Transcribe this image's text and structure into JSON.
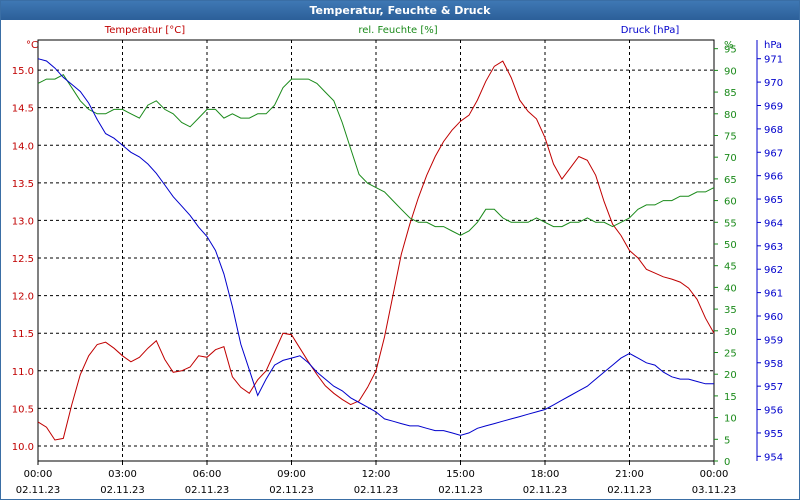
{
  "window": {
    "title": "Temperatur, Feuchte & Druck"
  },
  "chart_data": {
    "type": "line",
    "title": "Temperatur, Feuchte & Druck",
    "grid": true,
    "x_tick_labels": [
      {
        "time": "00:00",
        "date": "02.11.23"
      },
      {
        "time": "03:00",
        "date": "02.11.23"
      },
      {
        "time": "06:00",
        "date": "02.11.23"
      },
      {
        "time": "09:00",
        "date": "02.11.23"
      },
      {
        "time": "12:00",
        "date": "02.11.23"
      },
      {
        "time": "15:00",
        "date": "02.11.23"
      },
      {
        "time": "18:00",
        "date": "02.11.23"
      },
      {
        "time": "21:00",
        "date": "02.11.23"
      },
      {
        "time": "00:00",
        "date": "03.11.23"
      }
    ],
    "xlim": [
      0,
      24
    ],
    "axes": {
      "temperature": {
        "header": "Temperatur [°C]",
        "unit_label": "°C",
        "ylim": [
          9.8,
          15.4
        ],
        "ticks": [
          "10.0",
          "10.5",
          "11.0",
          "11.5",
          "12.0",
          "12.5",
          "13.0",
          "13.5",
          "14.0",
          "14.5",
          "15.0"
        ],
        "tick_values": [
          10.0,
          10.5,
          11.0,
          11.5,
          12.0,
          12.5,
          13.0,
          13.5,
          14.0,
          14.5,
          15.0
        ],
        "color": "#c00000"
      },
      "humidity": {
        "header": "rel. Feuchte [%]",
        "unit_label": "%",
        "ylim": [
          0,
          97
        ],
        "ticks": [
          "0",
          "5",
          "10",
          "15",
          "20",
          "25",
          "30",
          "35",
          "40",
          "45",
          "50",
          "55",
          "60",
          "65",
          "70",
          "75",
          "80",
          "85",
          "90",
          "95"
        ],
        "tick_values": [
          0,
          5,
          10,
          15,
          20,
          25,
          30,
          35,
          40,
          45,
          50,
          55,
          60,
          65,
          70,
          75,
          80,
          85,
          90,
          95
        ],
        "color": "#1a8a1a"
      },
      "pressure": {
        "header": "Druck [hPa]",
        "unit_label": "hPa",
        "ylim": [
          953.8,
          971.8
        ],
        "ticks": [
          "954",
          "955",
          "956",
          "957",
          "958",
          "959",
          "960",
          "961",
          "962",
          "963",
          "964",
          "965",
          "966",
          "967",
          "968",
          "969",
          "970",
          "971"
        ],
        "tick_values": [
          954,
          955,
          956,
          957,
          958,
          959,
          960,
          961,
          962,
          963,
          964,
          965,
          966,
          967,
          968,
          969,
          970,
          971
        ],
        "color": "#0000cc"
      }
    },
    "series": [
      {
        "name": "Temperatur [°C]",
        "axis": "temperature",
        "color": "#c00000",
        "x": [
          0,
          0.3,
          0.6,
          0.9,
          1.2,
          1.5,
          1.8,
          2.1,
          2.4,
          2.7,
          3.0,
          3.3,
          3.6,
          3.9,
          4.2,
          4.5,
          4.8,
          5.1,
          5.4,
          5.7,
          6.0,
          6.3,
          6.6,
          6.9,
          7.2,
          7.5,
          7.8,
          8.1,
          8.4,
          8.7,
          9.0,
          9.3,
          9.6,
          9.9,
          10.2,
          10.5,
          10.8,
          11.1,
          11.4,
          11.7,
          12.0,
          12.3,
          12.6,
          12.9,
          13.2,
          13.5,
          13.8,
          14.1,
          14.4,
          14.7,
          15.0,
          15.3,
          15.6,
          15.9,
          16.2,
          16.5,
          16.8,
          17.1,
          17.4,
          17.7,
          18.0,
          18.3,
          18.6,
          18.9,
          19.2,
          19.5,
          19.8,
          20.1,
          20.4,
          20.7,
          21.0,
          21.3,
          21.6,
          21.9,
          22.2,
          22.5,
          22.8,
          23.1,
          23.4,
          23.7,
          24.0
        ],
        "values": [
          10.32,
          10.25,
          10.08,
          10.1,
          10.55,
          10.95,
          11.2,
          11.35,
          11.38,
          11.3,
          11.2,
          11.12,
          11.18,
          11.3,
          11.4,
          11.15,
          10.98,
          11.0,
          11.05,
          11.2,
          11.18,
          11.28,
          11.32,
          10.92,
          10.78,
          10.7,
          10.88,
          11.0,
          11.25,
          11.5,
          11.48,
          11.3,
          11.12,
          10.95,
          10.8,
          10.7,
          10.62,
          10.55,
          10.6,
          10.78,
          11.0,
          11.45,
          12.0,
          12.55,
          12.95,
          13.3,
          13.6,
          13.85,
          14.05,
          14.2,
          14.32,
          14.4,
          14.6,
          14.85,
          15.05,
          15.12,
          14.9,
          14.6,
          14.45,
          14.35,
          14.1,
          13.75,
          13.55,
          13.7,
          13.85,
          13.8,
          13.6,
          13.25,
          12.95,
          12.8,
          12.6,
          12.5,
          12.35,
          12.3,
          12.25,
          12.22,
          12.18,
          12.1,
          11.95,
          11.7,
          11.5
        ],
        "note_x_units": "hours"
      },
      {
        "name": "rel. Feuchte [%]",
        "axis": "humidity",
        "color": "#1a8a1a",
        "values": [
          87,
          88,
          88,
          89,
          86,
          83,
          81,
          80,
          80,
          81,
          81,
          80,
          79,
          82,
          83,
          81,
          80,
          78,
          77,
          79,
          81,
          81,
          79,
          80,
          79,
          79,
          80,
          80,
          82,
          86,
          88,
          88,
          88,
          87,
          85,
          83,
          78,
          72,
          66,
          64,
          63,
          62,
          60,
          58,
          56,
          55,
          55,
          54,
          54,
          53,
          52,
          53,
          55,
          58,
          58,
          56,
          55,
          55,
          55,
          56,
          55,
          54,
          54,
          55,
          55,
          56,
          55,
          55,
          54,
          55,
          56,
          58,
          59,
          59,
          60,
          60,
          61,
          61,
          62,
          62,
          63
        ],
        "note_x_units": "hours (same grid as temperature)"
      },
      {
        "name": "Druck [hPa]",
        "axis": "pressure",
        "color": "#0000cc",
        "values": [
          971.0,
          970.9,
          970.6,
          970.2,
          969.9,
          969.6,
          969.1,
          968.4,
          967.8,
          967.6,
          967.3,
          967.0,
          966.8,
          966.5,
          966.1,
          965.6,
          965.1,
          964.7,
          964.3,
          963.8,
          963.4,
          962.8,
          961.8,
          960.4,
          958.8,
          957.7,
          956.6,
          957.3,
          957.9,
          958.1,
          958.2,
          958.3,
          958.0,
          957.6,
          957.3,
          957.0,
          956.8,
          956.5,
          956.3,
          956.1,
          955.9,
          955.6,
          955.5,
          955.4,
          955.3,
          955.3,
          955.2,
          955.1,
          955.1,
          955.0,
          954.9,
          955.0,
          955.2,
          955.3,
          955.4,
          955.5,
          955.6,
          955.7,
          955.8,
          955.9,
          956.0,
          956.2,
          956.4,
          956.6,
          956.8,
          957.0,
          957.3,
          957.6,
          957.9,
          958.2,
          958.4,
          958.2,
          958.0,
          957.9,
          957.6,
          957.4,
          957.3,
          957.3,
          957.2,
          957.1,
          957.1
        ],
        "note_x_units": "hours (same grid as temperature)"
      }
    ]
  }
}
